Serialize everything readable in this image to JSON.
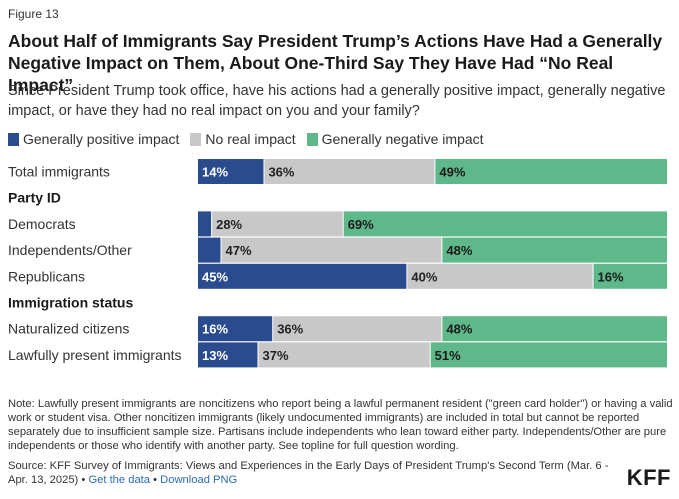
{
  "figure_label": "Figure 13",
  "title": "About Half of Immigrants Say President Trump’s Actions Have Had a Generally Negative Impact on Them, About One-Third Say They Have Had “No Real Impact”",
  "subtitle": "Since President Trump took office, have his actions had a generally positive impact, generally negative impact, or have they had no real impact on you and your family?",
  "colors": {
    "positive": "#2a4b8d",
    "none": "#c8c8c8",
    "negative": "#5eb88a"
  },
  "chart_data": {
    "type": "bar",
    "orientation": "horizontal",
    "stacked": true,
    "title": "About Half of Immigrants Say President Trump’s Actions Have Had a Generally Negative Impact on Them, About One-Third Say They Have Had “No Real Impact”",
    "legend": [
      "Generally positive impact",
      "No real impact",
      "Generally negative impact"
    ],
    "rows": [
      {
        "kind": "bar",
        "label": "Total immigrants",
        "values": [
          14,
          36,
          49
        ]
      },
      {
        "kind": "group",
        "label": "Party ID"
      },
      {
        "kind": "bar",
        "label": "Democrats",
        "values": [
          3,
          28,
          69
        ]
      },
      {
        "kind": "bar",
        "label": "Independents/Other",
        "values": [
          5,
          47,
          48
        ]
      },
      {
        "kind": "bar",
        "label": "Republicans",
        "values": [
          45,
          40,
          16
        ]
      },
      {
        "kind": "group",
        "label": "Immigration status"
      },
      {
        "kind": "bar",
        "label": "Naturalized citizens",
        "values": [
          16,
          36,
          48
        ]
      },
      {
        "kind": "bar",
        "label": "Lawfully present immigrants",
        "values": [
          13,
          37,
          51
        ]
      }
    ],
    "data_labels": [
      [
        "14%",
        "36%",
        "49%"
      ],
      null,
      [
        "",
        "28%",
        "69%"
      ],
      [
        "",
        "47%",
        "48%"
      ],
      [
        "45%",
        "40%",
        "16%"
      ],
      null,
      [
        "16%",
        "36%",
        "48%"
      ],
      [
        "13%",
        "37%",
        "51%"
      ]
    ]
  },
  "note": "Note: Lawfully present immigrants are noncitizens who report being a lawful permanent resident (\"green card holder\") or having a valid work or student visa. Other noncitizen immigrants (likely undocumented immigrants) are included in total but cannot be reported separately due to insufficient sample size. Partisans include independents who lean toward either party. Independents/Other are pure independents or those who identify with another party. See topline for full question wording.",
  "source": "Source: KFF Survey of Immigrants: Views and Experiences in the Early Days of President Trump's Second Term (Mar. 6 - Apr. 13, 2025)",
  "source_sep": " • ",
  "links": {
    "get_data": "Get the data",
    "download": "Download PNG"
  },
  "logo": "KFF"
}
